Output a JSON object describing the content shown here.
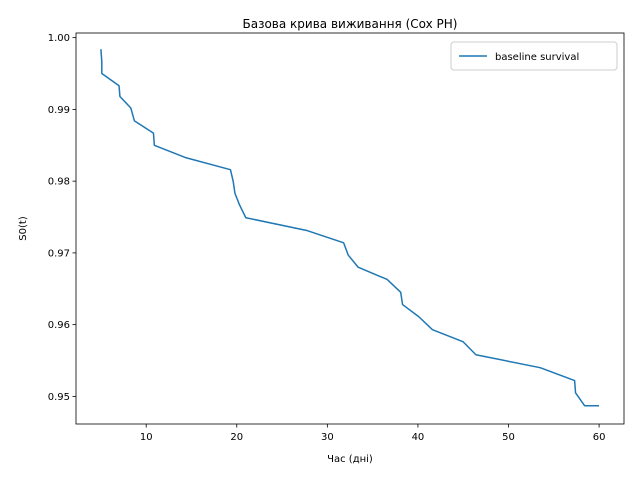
{
  "chart_data": {
    "type": "line",
    "title": "Базова крива виживання (Cox PH)",
    "xlabel": "Час (дні)",
    "ylabel": "S0(t)",
    "xlim": [
      2.25,
      62.75
    ],
    "ylim": [
      0.94615,
      1.00065
    ],
    "xticks": [
      10,
      20,
      30,
      40,
      50,
      60
    ],
    "yticks": [
      0.95,
      0.96,
      0.97,
      0.98,
      0.99,
      1.0
    ],
    "ytick_labels": [
      "0.95",
      "0.96",
      "0.97",
      "0.98",
      "0.99",
      "1.00"
    ],
    "grid": false,
    "legend_position": "upper right",
    "series": [
      {
        "name": "baseline survival",
        "color": "#1f77b4",
        "x": [
          5.0,
          5.1,
          5.1,
          7.0,
          7.1,
          8.3,
          8.7,
          10.8,
          10.9,
          14.3,
          19.3,
          19.6,
          19.8,
          20.3,
          21.0,
          27.8,
          31.8,
          32.3,
          33.4,
          36.6,
          38.1,
          38.3,
          40.1,
          41.6,
          45.0,
          46.4,
          53.5,
          57.3,
          57.4,
          58.4,
          60.0
        ],
        "y": [
          0.9984,
          0.9966,
          0.995,
          0.9933,
          0.9918,
          0.9902,
          0.9884,
          0.9867,
          0.985,
          0.9833,
          0.9816,
          0.98,
          0.9783,
          0.9767,
          0.9749,
          0.9731,
          0.9714,
          0.9697,
          0.968,
          0.9663,
          0.9645,
          0.9628,
          0.9611,
          0.9593,
          0.9576,
          0.9558,
          0.954,
          0.9522,
          0.9505,
          0.9487,
          0.9487
        ]
      }
    ]
  }
}
